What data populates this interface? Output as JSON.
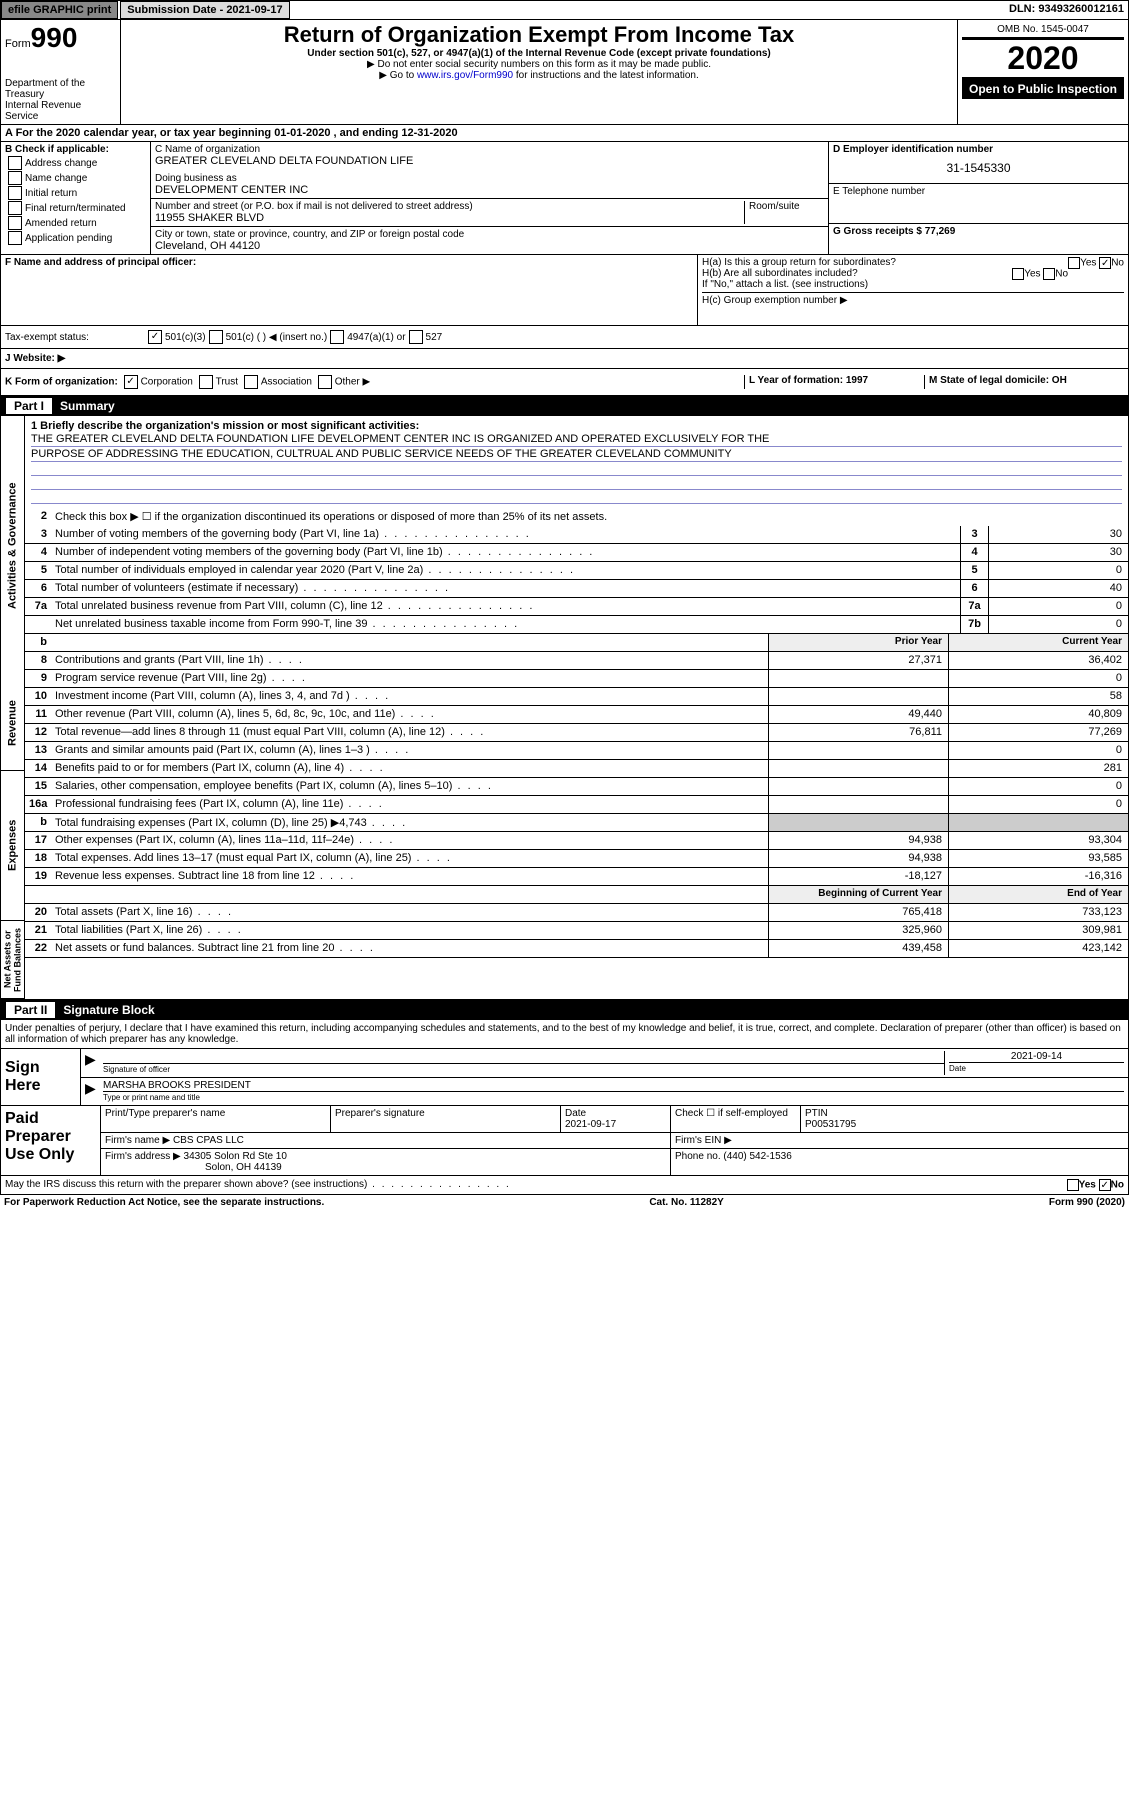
{
  "header": {
    "efile_label": "efile GRAPHIC print",
    "submission_label": "Submission Date - 2021-09-17",
    "dln": "DLN: 93493260012161"
  },
  "title_block": {
    "form_prefix": "Form",
    "form_num": "990",
    "dept": "Department of the Treasury",
    "irs": "Internal Revenue Service",
    "main_title": "Return of Organization Exempt From Income Tax",
    "sub1": "Under section 501(c), 527, or 4947(a)(1) of the Internal Revenue Code (except private foundations)",
    "sub2": "▶ Do not enter social security numbers on this form as it may be made public.",
    "sub3_pre": "▶ Go to ",
    "sub3_link": "www.irs.gov/Form990",
    "sub3_post": " for instructions and the latest information.",
    "omb": "OMB No. 1545-0047",
    "year": "2020",
    "open": "Open to Public Inspection"
  },
  "row_a": "A For the 2020 calendar year, or tax year beginning 01-01-2020   , and ending 12-31-2020",
  "col_b": {
    "header": "B Check if applicable:",
    "items": [
      "Address change",
      "Name change",
      "Initial return",
      "Final return/terminated",
      "Amended return",
      "Application pending"
    ]
  },
  "col_c": {
    "name_lbl": "C Name of organization",
    "name": "GREATER CLEVELAND DELTA FOUNDATION LIFE",
    "dba_lbl": "Doing business as",
    "dba": "DEVELOPMENT CENTER INC",
    "addr_lbl": "Number and street (or P.O. box if mail is not delivered to street address)",
    "room_lbl": "Room/suite",
    "addr": "11955 SHAKER BLVD",
    "city_lbl": "City or town, state or province, country, and ZIP or foreign postal code",
    "city": "Cleveland, OH  44120"
  },
  "col_d": {
    "ein_lbl": "D Employer identification number",
    "ein": "31-1545330",
    "tel_lbl": "E Telephone number",
    "gross_lbl": "G Gross receipts $ 77,269"
  },
  "f_block": {
    "f_lbl": "F Name and address of principal officer:",
    "ha": "H(a)  Is this a group return for subordinates?",
    "hb": "H(b)  Are all subordinates included?",
    "hb_note": "If \"No,\" attach a list. (see instructions)",
    "hc": "H(c)  Group exemption number ▶",
    "yes": "Yes",
    "no": "No"
  },
  "tax_row": {
    "lbl": "Tax-exempt status:",
    "o1": "501(c)(3)",
    "o2": "501(c) (  ) ◀ (insert no.)",
    "o3": "4947(a)(1) or",
    "o4": "527"
  },
  "j_row": "J  Website: ▶",
  "klm": {
    "k": "K Form of organization:",
    "k_opts": [
      "Corporation",
      "Trust",
      "Association",
      "Other ▶"
    ],
    "l": "L Year of formation: 1997",
    "m": "M State of legal domicile: OH"
  },
  "part1": {
    "lbl": "Part I",
    "title": "Summary",
    "q1": "1  Briefly describe the organization's mission or most significant activities:",
    "q1_text1": "THE GREATER CLEVELAND DELTA FOUNDATION LIFE DEVELOPMENT CENTER INC IS ORGANIZED AND OPERATED EXCLUSIVELY FOR THE",
    "q1_text2": "PURPOSE OF ADDRESSING THE EDUCATION, CULTRUAL AND PUBLIC SERVICE NEEDS OF THE GREATER CLEVELAND COMMUNITY",
    "q2": "Check this box ▶ ☐ if the organization discontinued its operations or disposed of more than 25% of its net assets."
  },
  "gov_lines": [
    {
      "n": "3",
      "t": "Number of voting members of the governing body (Part VI, line 1a)",
      "box": "3",
      "val": "30"
    },
    {
      "n": "4",
      "t": "Number of independent voting members of the governing body (Part VI, line 1b)",
      "box": "4",
      "val": "30"
    },
    {
      "n": "5",
      "t": "Total number of individuals employed in calendar year 2020 (Part V, line 2a)",
      "box": "5",
      "val": "0"
    },
    {
      "n": "6",
      "t": "Total number of volunteers (estimate if necessary)",
      "box": "6",
      "val": "40"
    },
    {
      "n": "7a",
      "t": "Total unrelated business revenue from Part VIII, column (C), line 12",
      "box": "7a",
      "val": "0"
    },
    {
      "n": "",
      "t": "Net unrelated business taxable income from Form 990-T, line 39",
      "box": "7b",
      "val": "0"
    }
  ],
  "twocol_hdr": {
    "b": "b",
    "prior": "Prior Year",
    "current": "Current Year"
  },
  "rev_lines": [
    {
      "n": "8",
      "t": "Contributions and grants (Part VIII, line 1h)",
      "p": "27,371",
      "c": "36,402"
    },
    {
      "n": "9",
      "t": "Program service revenue (Part VIII, line 2g)",
      "p": "",
      "c": "0"
    },
    {
      "n": "10",
      "t": "Investment income (Part VIII, column (A), lines 3, 4, and 7d )",
      "p": "",
      "c": "58"
    },
    {
      "n": "11",
      "t": "Other revenue (Part VIII, column (A), lines 5, 6d, 8c, 9c, 10c, and 11e)",
      "p": "49,440",
      "c": "40,809"
    },
    {
      "n": "12",
      "t": "Total revenue—add lines 8 through 11 (must equal Part VIII, column (A), line 12)",
      "p": "76,811",
      "c": "77,269"
    }
  ],
  "exp_lines": [
    {
      "n": "13",
      "t": "Grants and similar amounts paid (Part IX, column (A), lines 1–3 )",
      "p": "",
      "c": "0"
    },
    {
      "n": "14",
      "t": "Benefits paid to or for members (Part IX, column (A), line 4)",
      "p": "",
      "c": "281"
    },
    {
      "n": "15",
      "t": "Salaries, other compensation, employee benefits (Part IX, column (A), lines 5–10)",
      "p": "",
      "c": "0"
    },
    {
      "n": "16a",
      "t": "Professional fundraising fees (Part IX, column (A), line 11e)",
      "p": "",
      "c": "0"
    },
    {
      "n": "b",
      "t": "Total fundraising expenses (Part IX, column (D), line 25) ▶4,743",
      "p": "grey",
      "c": "grey"
    },
    {
      "n": "17",
      "t": "Other expenses (Part IX, column (A), lines 11a–11d, 11f–24e)",
      "p": "94,938",
      "c": "93,304"
    },
    {
      "n": "18",
      "t": "Total expenses. Add lines 13–17 (must equal Part IX, column (A), line 25)",
      "p": "94,938",
      "c": "93,585"
    },
    {
      "n": "19",
      "t": "Revenue less expenses. Subtract line 18 from line 12",
      "p": "-18,127",
      "c": "-16,316"
    }
  ],
  "net_hdr": {
    "begin": "Beginning of Current Year",
    "end": "End of Year"
  },
  "net_lines": [
    {
      "n": "20",
      "t": "Total assets (Part X, line 16)",
      "p": "765,418",
      "c": "733,123"
    },
    {
      "n": "21",
      "t": "Total liabilities (Part X, line 26)",
      "p": "325,960",
      "c": "309,981"
    },
    {
      "n": "22",
      "t": "Net assets or fund balances. Subtract line 21 from line 20",
      "p": "439,458",
      "c": "423,142"
    }
  ],
  "vtabs": {
    "gov": "Activities & Governance",
    "rev": "Revenue",
    "exp": "Expenses",
    "net": "Net Assets or Fund Balances"
  },
  "part2": {
    "lbl": "Part II",
    "title": "Signature Block"
  },
  "sig": {
    "declare": "Under penalties of perjury, I declare that I have examined this return, including accompanying schedules and statements, and to the best of my knowledge and belief, it is true, correct, and complete. Declaration of preparer (other than officer) is based on all information of which preparer has any knowledge.",
    "sign_here": "Sign Here",
    "sig_officer_lbl": "Signature of officer",
    "date_lbl": "Date",
    "date_val": "2021-09-14",
    "name": "MARSHA BROOKS PRESIDENT",
    "name_lbl": "Type or print name and title"
  },
  "prep": {
    "lbl": "Paid Preparer Use Only",
    "pt_name_lbl": "Print/Type preparer's name",
    "pt_sig_lbl": "Preparer's signature",
    "pt_date_lbl": "Date",
    "pt_date": "2021-09-17",
    "self_lbl": "Check ☐ if self-employed",
    "ptin_lbl": "PTIN",
    "ptin": "P00531795",
    "firm_name_lbl": "Firm's name   ▶",
    "firm_name": "CBS CPAS LLC",
    "firm_ein_lbl": "Firm's EIN ▶",
    "firm_addr_lbl": "Firm's address ▶",
    "firm_addr1": "34305 Solon Rd Ste 10",
    "firm_addr2": "Solon, OH  44139",
    "phone_lbl": "Phone no. (440) 542-1536"
  },
  "footer": {
    "q": "May the IRS discuss this return with the preparer shown above? (see instructions)",
    "yes": "Yes",
    "no": "No"
  },
  "pgfoot": {
    "l": "For Paperwork Reduction Act Notice, see the separate instructions.",
    "c": "Cat. No. 11282Y",
    "r": "Form 990 (2020)"
  }
}
